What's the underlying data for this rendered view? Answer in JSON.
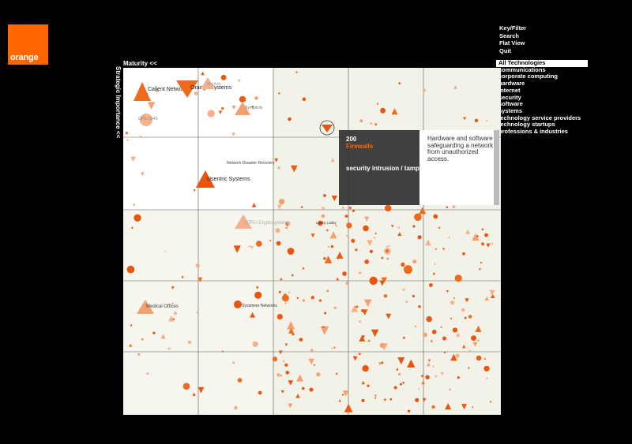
{
  "logo": {
    "text": "orange",
    "color": "#ff6600"
  },
  "menu": {
    "items": [
      "Key/Filter",
      "Search",
      "Flat View",
      "Quit"
    ]
  },
  "filters": {
    "selected": "All Technologies",
    "items": [
      "communications",
      "corporate computing",
      "hardware",
      "internet",
      "security",
      "software",
      "systems",
      "technology service providers",
      "technology startups",
      "professions & industries"
    ]
  },
  "axes": {
    "x_label": "Maturity  <<",
    "y_label": "Strategic Importance  <<"
  },
  "popup": {
    "number": "200",
    "name": "Firewalls",
    "category": "security intrusion / tampering",
    "description": "Hardware and software safeguarding a network from unauthorized access."
  },
  "labels": {
    "calient": "Calient Networks",
    "orange_systems": "Orange Systems",
    "medium": "Medium",
    "gps": "GPS / G4S",
    "symplicity": "Symplicity",
    "usentric": "Usentric Systems",
    "network_disaster": "Network Disaster Recovery",
    "ntru": "NTRU Cryptosystems",
    "medical_offices": "Medical Offices",
    "sycamore": "Sycamore Networks",
    "lobby": "Lobby Lobby"
  },
  "colors": {
    "accent": "#ff6600",
    "plot_bg": "#ffffff",
    "plot_bg_right": "#f3f2e8",
    "grid": "#555555"
  }
}
